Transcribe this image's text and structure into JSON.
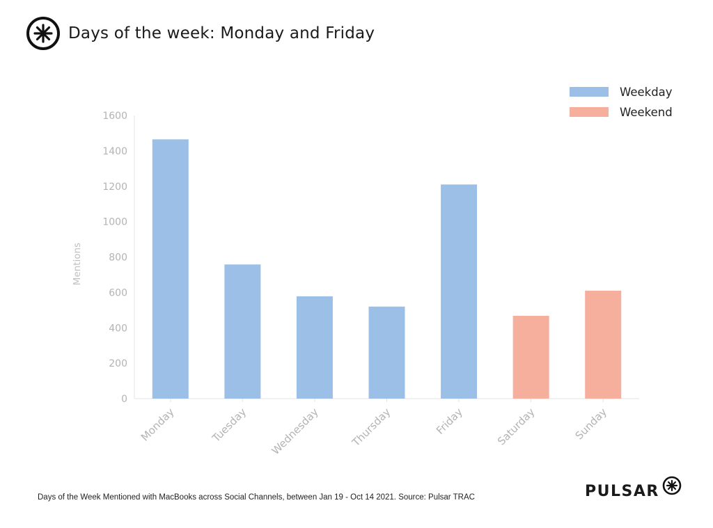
{
  "header": {
    "title": "Days of the week: Monday and Friday",
    "logo_icon": "pulsar-logo-icon"
  },
  "footer": {
    "note": "Days of the Week Mentioned with MacBooks across Social Channels, between Jan 19 - Oct 14 2021. Source: Pulsar TRAC",
    "brand": "PULSAR",
    "brand_icon": "pulsar-asterisk-icon"
  },
  "chart_data": {
    "type": "bar",
    "title": "",
    "xlabel": "",
    "ylabel": "Mentions",
    "ylim": [
      0,
      1600
    ],
    "yticks": [
      0,
      200,
      400,
      600,
      800,
      1000,
      1200,
      1400,
      1600
    ],
    "grid": false,
    "legend_position": "top-right",
    "categories": [
      "Monday",
      "Tuesday",
      "Wednesday",
      "Thursday",
      "Friday",
      "Saturday",
      "Sunday"
    ],
    "values": [
      1465,
      758,
      578,
      520,
      1210,
      468,
      610
    ],
    "groups": [
      "Weekday",
      "Weekday",
      "Weekday",
      "Weekday",
      "Weekday",
      "Weekend",
      "Weekend"
    ],
    "legend": [
      {
        "name": "Weekday",
        "color": "#9bbfe6"
      },
      {
        "name": "Weekend",
        "color": "#f6ae9d"
      }
    ]
  }
}
